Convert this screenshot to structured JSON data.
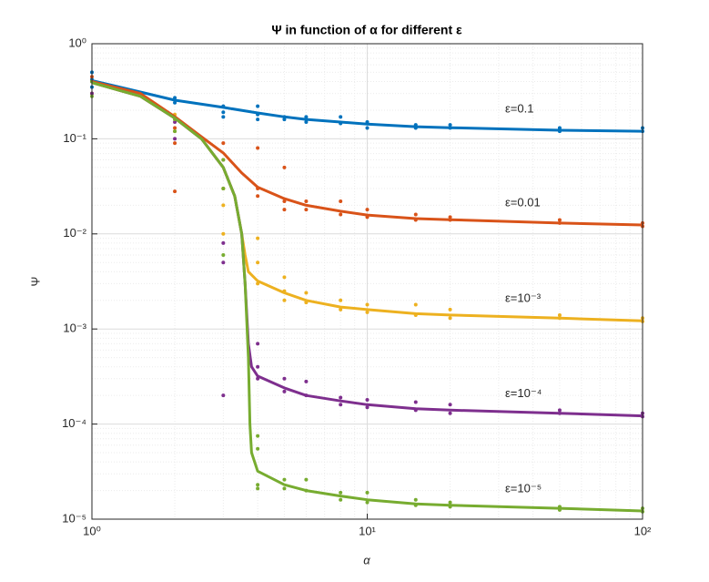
{
  "chart_data": {
    "type": "line",
    "title": "Ψ in function of α for different ε",
    "xlabel": "α",
    "ylabel": "Ψ",
    "xscale": "log",
    "yscale": "log",
    "grid": true,
    "minor_grid": true,
    "xlim": [
      1,
      100
    ],
    "ylim": [
      1e-05,
      1
    ],
    "xticks": [
      {
        "value": 1,
        "label": "10⁰"
      },
      {
        "value": 10,
        "label": "10¹"
      },
      {
        "value": 100,
        "label": "10²"
      }
    ],
    "yticks": [
      {
        "value": 1e-05,
        "label": "10⁻⁵"
      },
      {
        "value": 0.0001,
        "label": "10⁻⁴"
      },
      {
        "value": 0.001,
        "label": "10⁻³"
      },
      {
        "value": 0.01,
        "label": "10⁻²"
      },
      {
        "value": 0.1,
        "label": "10⁻¹"
      },
      {
        "value": 1,
        "label": "10⁰"
      }
    ],
    "series": [
      {
        "label": "ε=0.1",
        "color": "#0072BD",
        "x": [
          1,
          2,
          3,
          4,
          5,
          6,
          8,
          10,
          15,
          20,
          50,
          100
        ],
        "values": [
          0.41,
          0.255,
          0.214,
          0.187,
          0.17,
          0.16,
          0.15,
          0.143,
          0.134,
          0.131,
          0.123,
          0.12
        ],
        "points_x": [
          1,
          1,
          1,
          2,
          2,
          3,
          3,
          3,
          4,
          4,
          4,
          5,
          5,
          6,
          6,
          8,
          8,
          10,
          10,
          15,
          15,
          20,
          20,
          50,
          50,
          100,
          100
        ],
        "points": [
          0.5,
          0.35,
          0.42,
          0.27,
          0.24,
          0.22,
          0.19,
          0.17,
          0.22,
          0.18,
          0.16,
          0.17,
          0.16,
          0.17,
          0.15,
          0.17,
          0.145,
          0.15,
          0.13,
          0.14,
          0.13,
          0.14,
          0.13,
          0.13,
          0.12,
          0.13,
          0.12
        ]
      },
      {
        "label": "ε=0.01",
        "color": "#D95319",
        "x": [
          1,
          1.5,
          2,
          2.5,
          3,
          3.5,
          4,
          5,
          6,
          8,
          10,
          15,
          20,
          50,
          100
        ],
        "values": [
          0.4,
          0.3,
          0.171,
          0.105,
          0.071,
          0.0437,
          0.031,
          0.0235,
          0.02,
          0.0173,
          0.0158,
          0.0145,
          0.0141,
          0.013,
          0.0124
        ],
        "points_x": [
          1,
          1,
          2,
          2,
          2,
          3,
          3,
          3,
          4,
          4,
          4,
          5,
          5,
          5,
          6,
          6,
          8,
          8,
          10,
          10,
          15,
          15,
          20,
          20,
          50,
          50,
          100,
          100
        ],
        "points": [
          0.45,
          0.3,
          0.13,
          0.09,
          0.028,
          0.09,
          0.06,
          0.03,
          0.08,
          0.03,
          0.025,
          0.05,
          0.022,
          0.018,
          0.022,
          0.018,
          0.022,
          0.016,
          0.018,
          0.015,
          0.016,
          0.014,
          0.015,
          0.014,
          0.014,
          0.013,
          0.013,
          0.012
        ]
      },
      {
        "label": "ε=10⁻³",
        "color": "#EDB120",
        "x": [
          1,
          1.5,
          2,
          2.5,
          3,
          3.3,
          3.5,
          3.6,
          3.7,
          4,
          5,
          6,
          8,
          10,
          15,
          20,
          50,
          100
        ],
        "values": [
          0.39,
          0.28,
          0.165,
          0.1,
          0.05,
          0.025,
          0.01,
          0.006,
          0.004,
          0.0032,
          0.0024,
          0.002,
          0.0017,
          0.0016,
          0.00145,
          0.0014,
          0.0013,
          0.00122
        ],
        "points_x": [
          1,
          1,
          2,
          2,
          3,
          3,
          3,
          4,
          4,
          4,
          5,
          5,
          5,
          6,
          6,
          8,
          8,
          10,
          10,
          15,
          15,
          20,
          20,
          50,
          50,
          100,
          100
        ],
        "points": [
          0.4,
          0.3,
          0.18,
          0.12,
          0.03,
          0.02,
          0.01,
          0.009,
          0.005,
          0.003,
          0.0035,
          0.0025,
          0.002,
          0.0024,
          0.0019,
          0.002,
          0.0016,
          0.0018,
          0.0015,
          0.0018,
          0.0014,
          0.0016,
          0.0013,
          0.0014,
          0.0013,
          0.0013,
          0.0012
        ]
      },
      {
        "label": "ε=10⁻⁴",
        "color": "#7E2F8E",
        "x": [
          1,
          1.5,
          2,
          2.5,
          3,
          3.3,
          3.5,
          3.6,
          3.7,
          3.8,
          4,
          5,
          6,
          8,
          10,
          15,
          20,
          50,
          100
        ],
        "values": [
          0.39,
          0.28,
          0.165,
          0.1,
          0.05,
          0.025,
          0.01,
          0.003,
          0.0007,
          0.0004,
          0.00032,
          0.00024,
          0.0002,
          0.000175,
          0.00016,
          0.000145,
          0.00014,
          0.00013,
          0.000122
        ],
        "points_x": [
          1,
          1,
          2,
          2,
          3,
          3,
          3,
          4,
          4,
          4,
          5,
          5,
          6,
          6,
          8,
          8,
          10,
          10,
          15,
          15,
          20,
          20,
          50,
          50,
          100,
          100
        ],
        "points": [
          0.4,
          0.3,
          0.15,
          0.1,
          0.008,
          0.005,
          0.0002,
          0.0007,
          0.0004,
          0.0003,
          0.0003,
          0.00022,
          0.00028,
          0.0002,
          0.00019,
          0.00016,
          0.00018,
          0.00015,
          0.00017,
          0.00014,
          0.00016,
          0.00013,
          0.00014,
          0.00013,
          0.00013,
          0.00012
        ]
      },
      {
        "label": "ε=10⁻⁵",
        "color": "#77AC30",
        "x": [
          1,
          1.5,
          2,
          2.5,
          3,
          3.3,
          3.5,
          3.6,
          3.7,
          3.75,
          3.8,
          4,
          5,
          6,
          8,
          10,
          15,
          20,
          50,
          100
        ],
        "values": [
          0.39,
          0.28,
          0.165,
          0.1,
          0.05,
          0.025,
          0.01,
          0.003,
          0.0005,
          0.0001,
          5e-05,
          3.2e-05,
          2.3e-05,
          2e-05,
          1.75e-05,
          1.6e-05,
          1.45e-05,
          1.4e-05,
          1.3e-05,
          1.22e-05
        ],
        "points_x": [
          1,
          1,
          2,
          2,
          3,
          3,
          3,
          4,
          4,
          4,
          4,
          5,
          5,
          6,
          6,
          8,
          8,
          10,
          10,
          15,
          15,
          20,
          20,
          50,
          50,
          100,
          100
        ],
        "points": [
          0.4,
          0.28,
          0.16,
          0.12,
          0.06,
          0.03,
          0.006,
          7.5e-05,
          5.5e-05,
          2.3e-05,
          2.1e-05,
          2.6e-05,
          2.1e-05,
          2.6e-05,
          2e-05,
          1.9e-05,
          1.6e-05,
          1.9e-05,
          1.5e-05,
          1.6e-05,
          1.4e-05,
          1.5e-05,
          1.35e-05,
          1.35e-05,
          1.25e-05,
          1.3e-05,
          1.2e-05
        ]
      }
    ]
  }
}
